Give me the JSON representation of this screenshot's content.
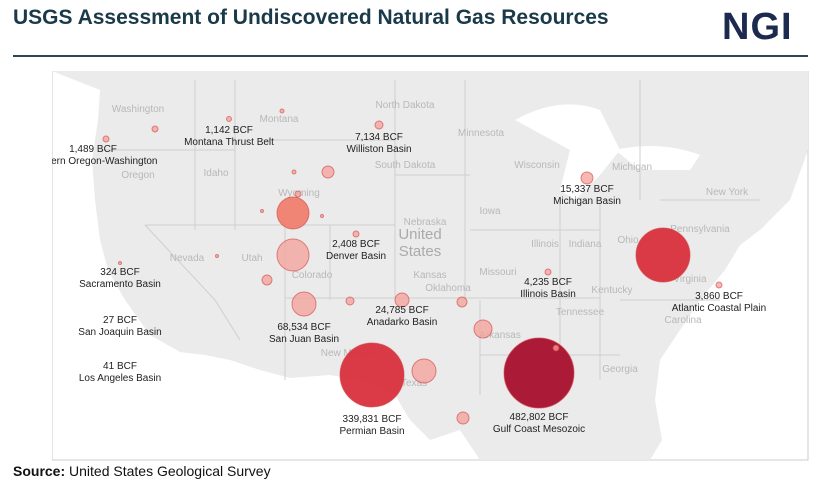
{
  "header": {
    "title": "USGS Assessment of Undiscovered Natural Gas Resources",
    "logo": "NGI"
  },
  "source": {
    "label": "Source:",
    "text": "United States Geological Survey"
  },
  "map": {
    "country_label": [
      "United",
      "States"
    ],
    "states": [
      "Washington",
      "Oregon",
      "Idaho",
      "Montana",
      "Wyoming",
      "Nevada",
      "Utah",
      "Colorado",
      "New Mexico",
      "Texas",
      "Oklahoma",
      "Kansas",
      "Nebraska",
      "North Dakota",
      "South Dakota",
      "Minnesota",
      "Iowa",
      "Missouri",
      "Arkansas",
      "Wisconsin",
      "Michigan",
      "Illinois",
      "Indiana",
      "Ohio",
      "Kentucky",
      "Tennessee",
      "Pennsylvania",
      "New York",
      "Georgia",
      "Carolina",
      "Virginia"
    ],
    "colors": {
      "small": "#f4a09a",
      "medium": "#f08070",
      "large": "#d9303c",
      "largest": "#a8102e"
    },
    "basins": [
      {
        "name": "Western Oregon-Washington",
        "value": "1,489 BCF"
      },
      {
        "name": "Montana Thrust Belt",
        "value": "1,142 BCF"
      },
      {
        "name": "Williston Basin",
        "value": "7,134 BCF"
      },
      {
        "name": "Denver Basin",
        "value": "2,408 BCF"
      },
      {
        "name": "Sacramento Basin",
        "value": "324 BCF"
      },
      {
        "name": "San Joaquin Basin",
        "value": "27 BCF"
      },
      {
        "name": "Los Angeles Basin",
        "value": "41 BCF"
      },
      {
        "name": "San Juan Basin",
        "value": "68,534 BCF"
      },
      {
        "name": "Anadarko Basin",
        "value": "24,785 BCF"
      },
      {
        "name": "Permian Basin",
        "value": "339,831 BCF"
      },
      {
        "name": "Gulf Coast Mesozoic",
        "value": "482,802 BCF"
      },
      {
        "name": "Illinois Basin",
        "value": "4,235 BCF"
      },
      {
        "name": "Michigan Basin",
        "value": "15,337 BCF"
      },
      {
        "name": "Atlantic Coastal Plain",
        "value": "3,860 BCF"
      }
    ]
  }
}
